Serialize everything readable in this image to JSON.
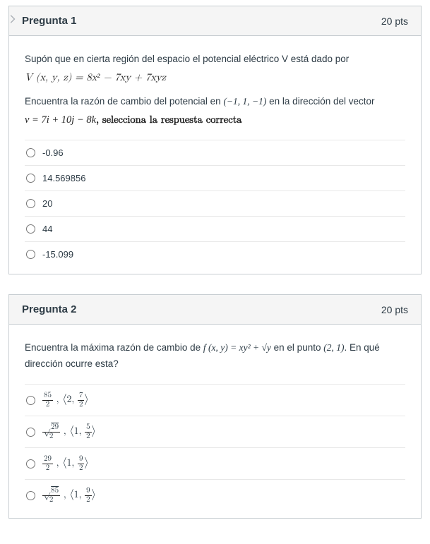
{
  "questions": [
    {
      "title": "Pregunta 1",
      "pts": "20 pts",
      "prompt_line1": "Supón que en cierta región del espacio el potencial eléctrico V está dado por",
      "formula1": "V (x, y, z) = 8x² − 7xy + 7xyz",
      "prompt_line2_a": "Encuentra la razón de cambio del potencial en ",
      "point": "(−1, 1, −1)",
      "prompt_line2_b": " en la dirección del vector",
      "formula2_a": "v = 7i + 10j − 8k",
      "formula2_b": ", selecciona la respuesta correcta",
      "options": [
        {
          "label": "-0.96"
        },
        {
          "label": "14.569856"
        },
        {
          "label": "20"
        },
        {
          "label": "44"
        },
        {
          "label": "-15.099"
        }
      ]
    },
    {
      "title": "Pregunta 2",
      "pts": "20 pts",
      "prompt_a": "Encuentra la máxima razón de cambio de ",
      "func": "f (x, y) = xy² + √y",
      "prompt_b": " en el punto ",
      "point": "(2, 1)",
      "prompt_c": ". En qué dirección ocurre esta?",
      "options": [
        {
          "html": "<span class='frac'><span class='n'>85</span><span class='d'>2</span></span> , <span class='angle'>⟨</span>2, <span class='frac'><span class='n'>7</span><span class='d'>2</span></span><span class='angle'>⟩</span>"
        },
        {
          "html": "<span class='frac'><span class='n'>√<span class='sqrt'>29</span></span><span class='d'>2</span></span> , <span class='angle'>⟨</span>1, <span class='frac'><span class='n'>5</span><span class='d'>2</span></span><span class='angle'>⟩</span>"
        },
        {
          "html": "<span class='frac'><span class='n'>29</span><span class='d'>2</span></span> , <span class='angle'>⟨</span>1, <span class='frac'><span class='n'>9</span><span class='d'>2</span></span><span class='angle'>⟩</span>"
        },
        {
          "html": "<span class='frac'><span class='n'>√<span class='sqrt'>85</span></span><span class='d'>2</span></span> , <span class='angle'>⟨</span>1, <span class='frac'><span class='n'>9</span><span class='d'>2</span></span><span class='angle'>⟩</span>"
        }
      ]
    }
  ],
  "colors": {
    "border": "#c7cdd1",
    "header_bg": "#f5f5f5",
    "text": "#2d3b45",
    "row_border": "#e8e8e8"
  }
}
